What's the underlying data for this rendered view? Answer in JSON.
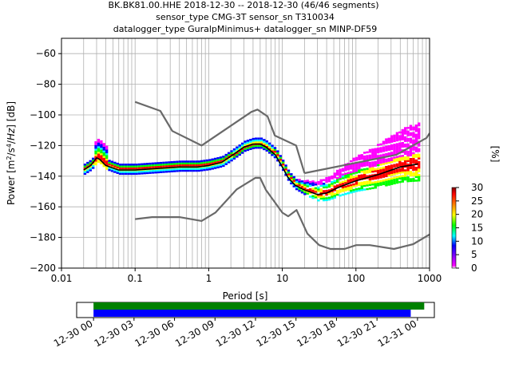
{
  "title_lines": [
    "BK.BK81.00.HHE   2018-12-30 -- 2018-12-30  (46/46 segments)",
    "sensor_type CMG-3T sensor_sn T310034",
    "datalogger_type GuralpMinimus+ datalogger_sn MINP-DF59"
  ],
  "chart_data": {
    "type": "heatmap",
    "xlabel": "Period [s]",
    "ylabel": "Power [m²/s⁴/Hz] [dB]",
    "x_scale": "log",
    "xlim": [
      0.01,
      1000
    ],
    "ylim": [
      -200,
      -50
    ],
    "x_ticks": [
      "0.01",
      "0.1",
      "1",
      "10",
      "100",
      "1000"
    ],
    "y_ticks": [
      "−200",
      "−180",
      "−160",
      "−140",
      "−120",
      "−100",
      "−80",
      "−60"
    ],
    "grid": true,
    "colorbar": {
      "label": "[%]",
      "range": [
        0,
        30
      ],
      "ticks": [
        "0",
        "5",
        "10",
        "15",
        "20",
        "25",
        "30"
      ],
      "colors": [
        "#ffffff",
        "#ff00ff",
        "#0000ff",
        "#00ffff",
        "#00ff00",
        "#ffff00",
        "#ff7f00",
        "#ff0000",
        "#800000"
      ]
    },
    "series": [
      {
        "role": "NHNM",
        "color": "#696969",
        "x": [
          0.1,
          0.22,
          0.32,
          0.8,
          3.8,
          4.6,
          6.3,
          7.9,
          15.4,
          20
        ],
        "y": [
          -91.5,
          -97.4,
          -110.5,
          -120.0,
          -98.0,
          -96.5,
          -101.0,
          -113.5,
          -120.0,
          -138.0
        ]
      },
      {
        "role": "NHNM-long",
        "color": "#696969",
        "x": [
          20,
          354.8,
          912.0,
          1000
        ],
        "y": [
          -138.0,
          -126.0,
          -115.0,
          -112.0
        ]
      },
      {
        "role": "NLNM",
        "color": "#696969",
        "x": [
          0.1,
          0.17,
          0.4,
          0.8,
          1.24,
          2.4,
          4.3,
          5.0,
          6.0,
          10.0,
          12.0,
          15.6,
          21.9,
          31.6,
          45.0,
          70.0,
          101.0,
          154.0,
          328.0,
          600.0,
          1000.0
        ],
        "y": [
          -168.0,
          -166.7,
          -166.7,
          -169.2,
          -163.7,
          -148.6,
          -141.1,
          -141.1,
          -149.0,
          -163.8,
          -166.2,
          -162.1,
          -177.5,
          -185.0,
          -187.5,
          -187.5,
          -185.0,
          -185.0,
          -187.5,
          -184.4,
          -178.0
        ]
      },
      {
        "role": "mode",
        "color": "#000000",
        "x": [
          0.02,
          0.025,
          0.03,
          0.033,
          0.04,
          0.06,
          0.1,
          0.2,
          0.4,
          0.7,
          1.0,
          1.5,
          2.0,
          3.0,
          4.0,
          5.0,
          6.0,
          8.0,
          10.0,
          12.0,
          15.0,
          20.0,
          30.0,
          40.0,
          60.0,
          100.0,
          200.0,
          400.0,
          700.0
        ],
        "y": [
          -136,
          -133,
          -128,
          -129,
          -133,
          -136,
          -136,
          -135,
          -134,
          -134,
          -133,
          -131,
          -127,
          -121,
          -119,
          -119,
          -121,
          -126,
          -134,
          -141,
          -146,
          -149,
          -152,
          -151,
          -147,
          -143,
          -139,
          -134,
          -132
        ]
      }
    ]
  },
  "timeline": {
    "x_ticks": [
      "12-30 00",
      "12-30 03",
      "12-30 06",
      "12-30 09",
      "12-30 12",
      "12-30 15",
      "12-30 18",
      "12-30 21",
      "12-31 00"
    ],
    "range_hours": [
      -1.25,
      25.25
    ],
    "bars": [
      {
        "role": "data",
        "color": "#008000",
        "start_hour": 0,
        "end_hour": 24.5
      },
      {
        "role": "used",
        "color": "#0000ff",
        "start_hour": 0,
        "end_hour": 23.5
      }
    ]
  }
}
